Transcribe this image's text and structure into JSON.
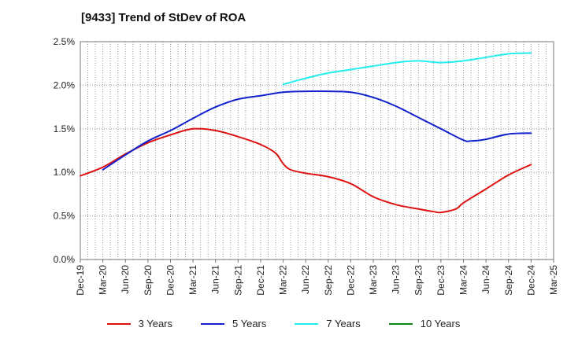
{
  "chart_data": {
    "type": "line",
    "title": "[9433]  Trend of StDev of ROA",
    "xlabel": "",
    "ylabel": "",
    "x_ticks": [
      "Dec-19",
      "Mar-20",
      "Jun-20",
      "Sep-20",
      "Dec-20",
      "Mar-21",
      "Jun-21",
      "Sep-21",
      "Dec-21",
      "Mar-22",
      "Jun-22",
      "Sep-22",
      "Dec-22",
      "Mar-23",
      "Jun-23",
      "Sep-23",
      "Dec-23",
      "Mar-24",
      "Jun-24",
      "Sep-24",
      "Dec-24",
      "Mar-25"
    ],
    "y_ticks": [
      "0.0%",
      "0.5%",
      "1.0%",
      "1.5%",
      "2.0%",
      "2.5%"
    ],
    "ylim": [
      0,
      2.5
    ],
    "grid": true,
    "legend_position": "bottom",
    "series": [
      {
        "name": "3 Years",
        "color": "#dd1111",
        "x": [
          "Dec-19",
          "Mar-20",
          "Jun-20",
          "Sep-20",
          "Dec-20",
          "Mar-21",
          "Jun-21",
          "Sep-21",
          "Dec-21",
          "Feb-22",
          "Mar-22",
          "Apr-22",
          "Jun-22",
          "Sep-22",
          "Dec-22",
          "Mar-23",
          "Jun-23",
          "Sep-23",
          "Nov-23",
          "Dec-23",
          "Feb-24",
          "Mar-24",
          "Jun-24",
          "Sep-24",
          "Dec-24"
        ],
        "values": [
          0.96,
          1.06,
          1.21,
          1.34,
          1.43,
          1.5,
          1.48,
          1.41,
          1.32,
          1.22,
          1.1,
          1.03,
          0.99,
          0.95,
          0.87,
          0.72,
          0.63,
          0.58,
          0.55,
          0.54,
          0.58,
          0.65,
          0.81,
          0.97,
          1.09
        ]
      },
      {
        "name": "5 Years",
        "color": "#1122cc",
        "x": [
          "Mar-20",
          "Jun-20",
          "Sep-20",
          "Dec-20",
          "Mar-21",
          "Jun-21",
          "Sep-21",
          "Dec-21",
          "Mar-22",
          "Jun-22",
          "Sep-22",
          "Dec-22",
          "Mar-23",
          "Jun-23",
          "Sep-23",
          "Dec-23",
          "Mar-24",
          "Apr-24",
          "Jun-24",
          "Sep-24",
          "Dec-24"
        ],
        "values": [
          1.03,
          1.2,
          1.36,
          1.48,
          1.62,
          1.75,
          1.84,
          1.88,
          1.92,
          1.93,
          1.93,
          1.92,
          1.86,
          1.76,
          1.63,
          1.5,
          1.37,
          1.36,
          1.38,
          1.44,
          1.45
        ]
      },
      {
        "name": "7 Years",
        "color": "#22eeee",
        "x": [
          "Mar-22",
          "Jun-22",
          "Sep-22",
          "Dec-22",
          "Mar-23",
          "Jun-23",
          "Sep-23",
          "Dec-23",
          "Mar-24",
          "Jun-24",
          "Sep-24",
          "Dec-24"
        ],
        "values": [
          2.01,
          2.08,
          2.14,
          2.18,
          2.22,
          2.26,
          2.28,
          2.26,
          2.28,
          2.32,
          2.36,
          2.37
        ]
      },
      {
        "name": "10 Years",
        "color": "#118811",
        "x": [],
        "values": []
      }
    ]
  }
}
